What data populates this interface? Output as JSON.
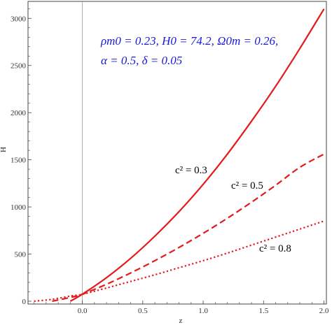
{
  "chart_data": {
    "type": "line",
    "title": "",
    "xlabel": "z",
    "ylabel": "H",
    "xlim": [
      -0.45,
      2.02
    ],
    "ylim": [
      -30,
      3180
    ],
    "xticks": [
      0.0,
      0.5,
      1.0,
      1.5,
      2.0
    ],
    "xtick_labels": [
      "0.0",
      "0.5",
      "1.0",
      "1.5",
      "2.0"
    ],
    "yticks": [
      0,
      500,
      1000,
      1500,
      2000,
      2500,
      3000
    ],
    "ytick_labels": [
      "0",
      "500",
      "1000",
      "1500",
      "2000",
      "2500",
      "3000"
    ],
    "grid": false,
    "annotation_lines": [
      "ρm0 = 0.23,  H0 = 74.2,  Ω0m = 0.26,",
      "α = 0.5,  δ = 0.05"
    ],
    "series": [
      {
        "label": "c² = 0.3",
        "line_style": "solid",
        "color": "#e41a1c",
        "x": [
          -0.1,
          0.0,
          0.2,
          0.4,
          0.6,
          0.8,
          1.0,
          1.2,
          1.4,
          1.6,
          1.8,
          2.0
        ],
        "y": [
          0,
          74,
          250,
          455,
          690,
          950,
          1240,
          1560,
          1910,
          2280,
          2680,
          3100
        ]
      },
      {
        "label": "c² = 0.5",
        "line_style": "dashed",
        "color": "#e41a1c",
        "x": [
          -0.25,
          -0.1,
          0.0,
          0.2,
          0.4,
          0.6,
          0.8,
          1.0,
          1.2,
          1.4,
          1.6,
          1.8,
          2.0
        ],
        "y": [
          0,
          40,
          74,
          180,
          300,
          430,
          570,
          720,
          880,
          1050,
          1230,
          1420,
          1560
        ]
      },
      {
        "label": "c² = 0.8",
        "line_style": "dotted",
        "color": "#e41a1c",
        "x": [
          -0.4,
          -0.25,
          -0.1,
          0.0,
          0.2,
          0.4,
          0.6,
          0.8,
          1.0,
          1.2,
          1.4,
          1.6,
          1.8,
          2.0
        ],
        "y": [
          0,
          20,
          55,
          74,
          140,
          210,
          280,
          355,
          430,
          510,
          595,
          680,
          765,
          850
        ]
      }
    ]
  }
}
